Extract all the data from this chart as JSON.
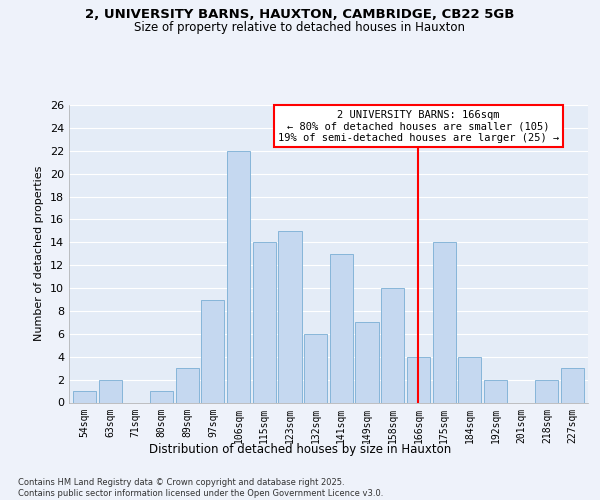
{
  "title": "2, UNIVERSITY BARNS, HAUXTON, CAMBRIDGE, CB22 5GB",
  "subtitle": "Size of property relative to detached houses in Hauxton",
  "xlabel": "Distribution of detached houses by size in Hauxton",
  "ylabel": "Number of detached properties",
  "footer_line1": "Contains HM Land Registry data © Crown copyright and database right 2025.",
  "footer_line2": "Contains public sector information licensed under the Open Government Licence v3.0.",
  "categories": [
    "54sqm",
    "63sqm",
    "71sqm",
    "80sqm",
    "89sqm",
    "97sqm",
    "106sqm",
    "115sqm",
    "123sqm",
    "132sqm",
    "141sqm",
    "149sqm",
    "158sqm",
    "166sqm",
    "175sqm",
    "184sqm",
    "192sqm",
    "201sqm",
    "218sqm",
    "227sqm"
  ],
  "values": [
    1,
    2,
    0,
    1,
    3,
    9,
    22,
    14,
    15,
    6,
    13,
    7,
    10,
    4,
    14,
    4,
    2,
    0,
    2,
    3
  ],
  "bar_color": "#c5d8f0",
  "bar_edge_color": "#7aaed4",
  "subject_line_index": 13,
  "subject_label": "2 UNIVERSITY BARNS: 166sqm",
  "annotation_line1": "← 80% of detached houses are smaller (105)",
  "annotation_line2": "19% of semi-detached houses are larger (25) →",
  "background_color": "#eef2fa",
  "plot_background": "#e4ecf7",
  "grid_color": "#ffffff",
  "ylim": [
    0,
    26
  ],
  "yticks": [
    0,
    2,
    4,
    6,
    8,
    10,
    12,
    14,
    16,
    18,
    20,
    22,
    24,
    26
  ]
}
